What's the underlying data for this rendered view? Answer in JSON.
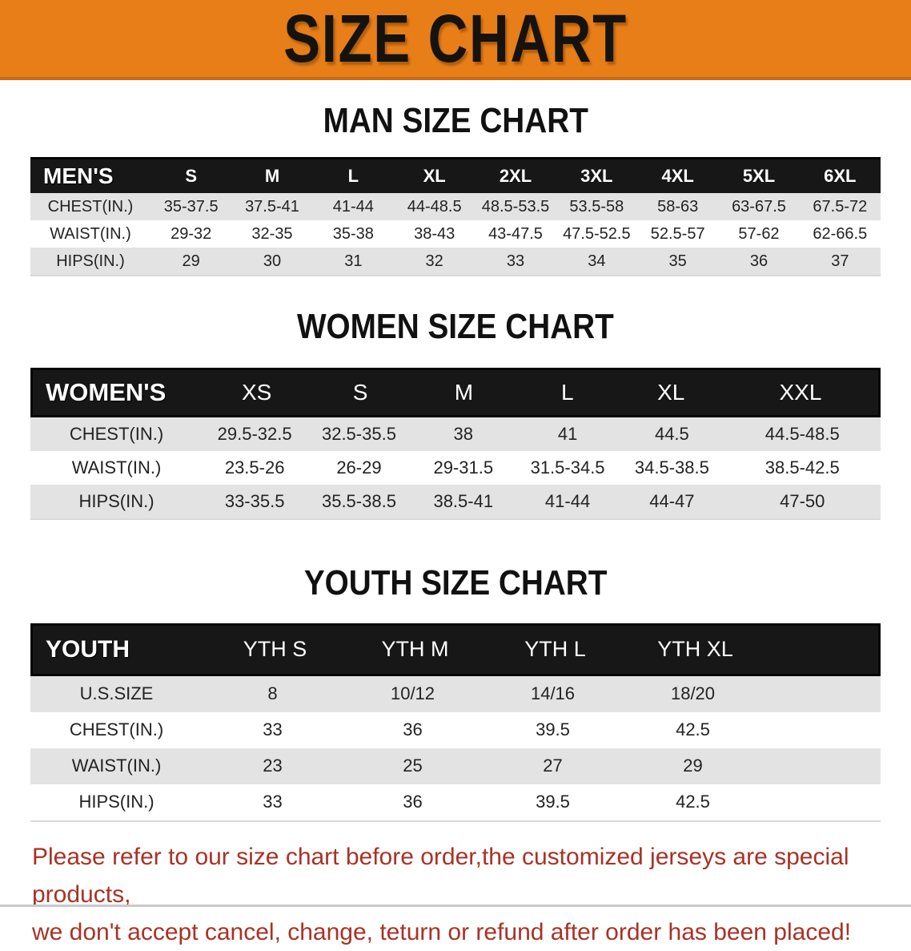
{
  "banner": {
    "title": "SIZE CHART"
  },
  "colors": {
    "banner_bg": "#E87E18",
    "banner_border": "#C96A10",
    "table_header_bg": "#171717",
    "row_alt_bg": "#E3E3E3",
    "note_text": "#A93226"
  },
  "men": {
    "heading": "MAN SIZE CHART",
    "corner_label": "MEN'S",
    "columns": [
      "S",
      "M",
      "L",
      "XL",
      "2XL",
      "3XL",
      "4XL",
      "5XL",
      "6XL"
    ],
    "rows": [
      {
        "label": "CHEST(IN.)",
        "values": [
          "35-37.5",
          "37.5-41",
          "41-44",
          "44-48.5",
          "48.5-53.5",
          "53.5-58",
          "58-63",
          "63-67.5",
          "67.5-72"
        ]
      },
      {
        "label": "WAIST(IN.)",
        "values": [
          "29-32",
          "32-35",
          "35-38",
          "38-43",
          "43-47.5",
          "47.5-52.5",
          "52.5-57",
          "57-62",
          "62-66.5"
        ]
      },
      {
        "label": "HIPS(IN.)",
        "values": [
          "29",
          "30",
          "31",
          "32",
          "33",
          "34",
          "35",
          "36",
          "37"
        ]
      }
    ]
  },
  "women": {
    "heading": "WOMEN SIZE CHART",
    "corner_label": "WOMEN'S",
    "columns": [
      "XS",
      "S",
      "M",
      "L",
      "XL",
      "XXL"
    ],
    "rows": [
      {
        "label": "CHEST(IN.)",
        "values": [
          "29.5-32.5",
          "32.5-35.5",
          "38",
          "41",
          "44.5",
          "44.5-48.5"
        ]
      },
      {
        "label": "WAIST(IN.)",
        "values": [
          "23.5-26",
          "26-29",
          "29-31.5",
          "31.5-34.5",
          "34.5-38.5",
          "38.5-42.5"
        ]
      },
      {
        "label": "HIPS(IN.)",
        "values": [
          "33-35.5",
          "35.5-38.5",
          "38.5-41",
          "41-44",
          "44-47",
          "47-50"
        ]
      }
    ]
  },
  "youth": {
    "heading": "YOUTH SIZE CHART",
    "corner_label": "YOUTH",
    "columns": [
      "YTH S",
      "YTH M",
      "YTH L",
      "YTH XL"
    ],
    "rows": [
      {
        "label": "U.S.SIZE",
        "values": [
          "8",
          "10/12",
          "14/16",
          "18/20"
        ]
      },
      {
        "label": "CHEST(IN.)",
        "values": [
          "33",
          "36",
          "39.5",
          "42.5"
        ]
      },
      {
        "label": "WAIST(IN.)",
        "values": [
          "23",
          "25",
          "27",
          "29"
        ]
      },
      {
        "label": "HIPS(IN.)",
        "values": [
          "33",
          "36",
          "39.5",
          "42.5"
        ]
      }
    ]
  },
  "note": {
    "line1": "Please refer to our size chart before order,the customized jerseys are special products,",
    "line2": "we don't accept cancel, change, teturn or refund after order has been placed!"
  }
}
